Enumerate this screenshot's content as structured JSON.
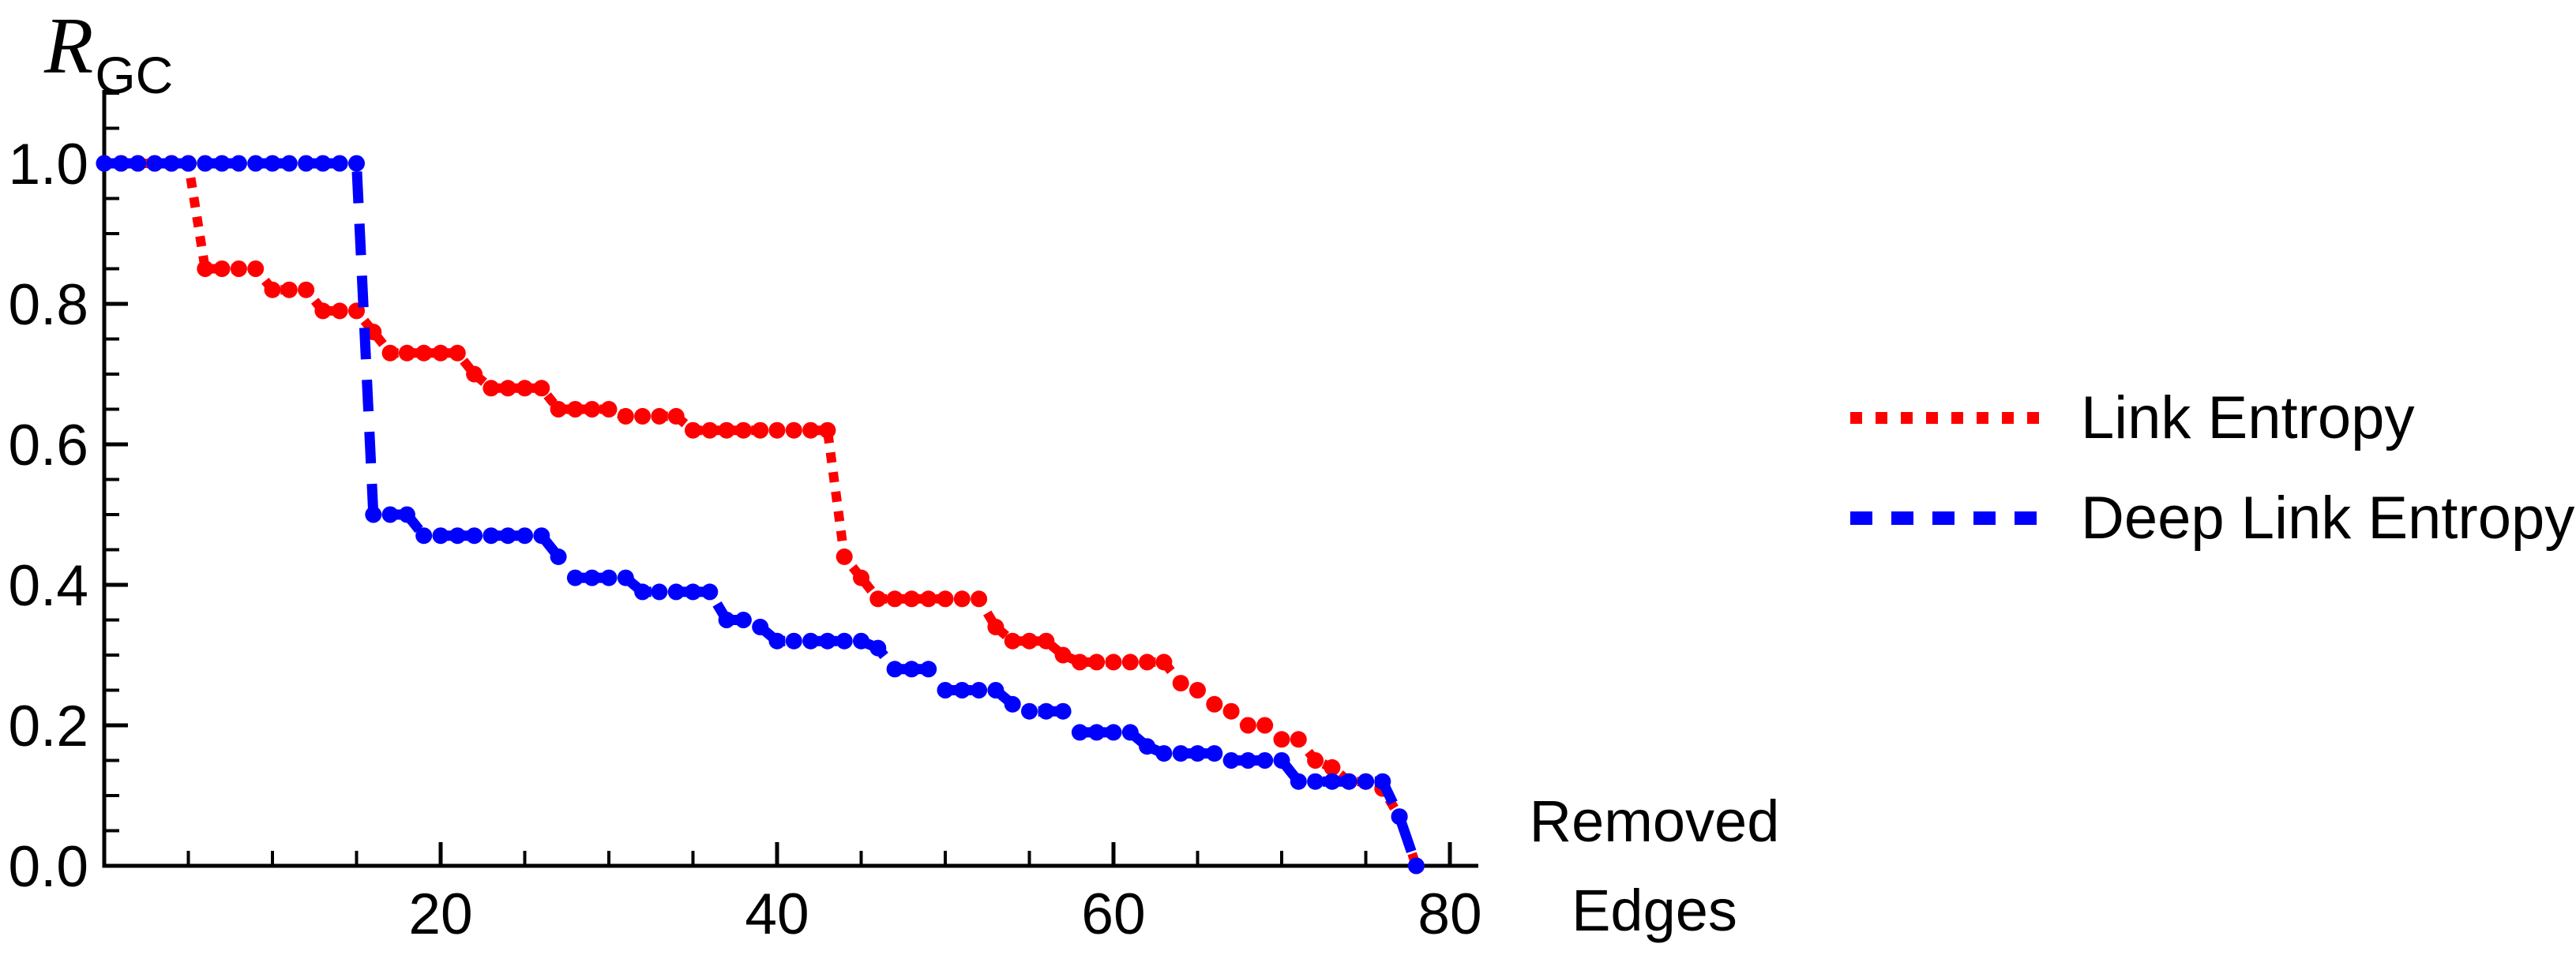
{
  "figure": {
    "y_axis_title": {
      "main": "R",
      "sub": "GC"
    },
    "x_axis_title": {
      "line1": "Removed",
      "line2": "Edges"
    }
  },
  "legend": {
    "position": "right-outside",
    "items": [
      {
        "label": "Link Entropy",
        "color": "#FF0000",
        "style": "dotted"
      },
      {
        "label": "Deep Link Entropy",
        "color": "#0000FF",
        "style": "dashed"
      }
    ]
  },
  "chart_data": {
    "type": "line",
    "title": "",
    "xlabel": "Removed Edges",
    "ylabel": "R_GC",
    "xlim": [
      0,
      81.7
    ],
    "ylim": [
      0,
      1.1
    ],
    "grid": false,
    "legend_position": "right-outside",
    "x_major_ticks": [
      20,
      40,
      60,
      80
    ],
    "x_major_tick_labels": [
      "20",
      "40",
      "60",
      "80"
    ],
    "x_minor_tick_step": 5,
    "y_major_ticks": [
      0.0,
      0.2,
      0.4,
      0.6,
      0.8,
      1.0
    ],
    "y_major_tick_labels": [
      "0.0",
      "0.2",
      "0.4",
      "0.6",
      "0.8",
      "1.0"
    ],
    "y_minor_tick_step": 0.05,
    "series": [
      {
        "name": "Link Entropy",
        "color": "#FF0000",
        "dash": "dotted",
        "marker": "circle",
        "x": [
          0,
          1,
          2,
          3,
          4,
          5,
          6,
          7,
          8,
          9,
          10,
          11,
          12,
          13,
          14,
          15,
          16,
          17,
          18,
          19,
          20,
          21,
          22,
          23,
          24,
          25,
          26,
          27,
          28,
          29,
          30,
          31,
          32,
          33,
          34,
          35,
          36,
          37,
          38,
          39,
          40,
          41,
          42,
          43,
          44,
          45,
          46,
          47,
          48,
          49,
          50,
          51,
          52,
          53,
          54,
          55,
          56,
          57,
          58,
          59,
          60,
          61,
          62,
          63,
          64,
          65,
          66,
          67,
          68,
          69,
          70,
          71,
          72,
          73,
          74,
          75,
          76,
          77,
          78
        ],
        "y": [
          1,
          1,
          1,
          1,
          1,
          1,
          0.85,
          0.85,
          0.85,
          0.85,
          0.82,
          0.82,
          0.82,
          0.79,
          0.79,
          0.79,
          0.76,
          0.73,
          0.73,
          0.73,
          0.73,
          0.73,
          0.7,
          0.68,
          0.68,
          0.68,
          0.68,
          0.65,
          0.65,
          0.65,
          0.65,
          0.64,
          0.64,
          0.64,
          0.64,
          0.62,
          0.62,
          0.62,
          0.62,
          0.62,
          0.62,
          0.62,
          0.62,
          0.62,
          0.44,
          0.41,
          0.38,
          0.38,
          0.38,
          0.38,
          0.38,
          0.38,
          0.38,
          0.34,
          0.32,
          0.32,
          0.32,
          0.3,
          0.29,
          0.29,
          0.29,
          0.29,
          0.29,
          0.29,
          0.26,
          0.25,
          0.23,
          0.22,
          0.2,
          0.2,
          0.18,
          0.18,
          0.15,
          0.14,
          0.12,
          0.12,
          0.11,
          0.07,
          0.0
        ]
      },
      {
        "name": "Deep Link Entropy",
        "color": "#0000FF",
        "dash": "dashed",
        "marker": "circle",
        "x": [
          0,
          1,
          2,
          3,
          4,
          5,
          6,
          7,
          8,
          9,
          10,
          11,
          12,
          13,
          14,
          15,
          16,
          17,
          18,
          19,
          20,
          21,
          22,
          23,
          24,
          25,
          26,
          27,
          28,
          29,
          30,
          31,
          32,
          33,
          34,
          35,
          36,
          37,
          38,
          39,
          40,
          41,
          42,
          43,
          44,
          45,
          46,
          47,
          48,
          49,
          50,
          51,
          52,
          53,
          54,
          55,
          56,
          57,
          58,
          59,
          60,
          61,
          62,
          63,
          64,
          65,
          66,
          67,
          68,
          69,
          70,
          71,
          72,
          73,
          74,
          75,
          76,
          77,
          78
        ],
        "y": [
          1,
          1,
          1,
          1,
          1,
          1,
          1,
          1,
          1,
          1,
          1,
          1,
          1,
          1,
          1,
          1,
          0.5,
          0.5,
          0.5,
          0.47,
          0.47,
          0.47,
          0.47,
          0.47,
          0.47,
          0.47,
          0.47,
          0.44,
          0.41,
          0.41,
          0.41,
          0.41,
          0.39,
          0.39,
          0.39,
          0.39,
          0.39,
          0.35,
          0.35,
          0.34,
          0.32,
          0.32,
          0.32,
          0.32,
          0.32,
          0.32,
          0.31,
          0.28,
          0.28,
          0.28,
          0.25,
          0.25,
          0.25,
          0.25,
          0.23,
          0.22,
          0.22,
          0.22,
          0.19,
          0.19,
          0.19,
          0.19,
          0.17,
          0.16,
          0.16,
          0.16,
          0.16,
          0.15,
          0.15,
          0.15,
          0.15,
          0.12,
          0.12,
          0.12,
          0.12,
          0.12,
          0.12,
          0.07,
          0.0
        ]
      }
    ]
  }
}
